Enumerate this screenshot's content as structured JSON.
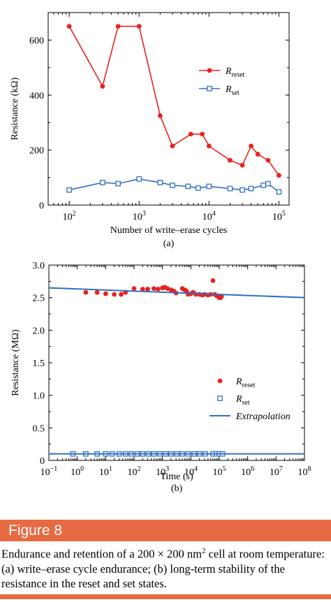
{
  "chart_data": [
    {
      "type": "line",
      "panel_label": "(a)",
      "xlabel": "Number of write–erase cycles",
      "ylabel": "Resistance  (kΩ)",
      "xscale": "log",
      "xlim": [
        50,
        140000
      ],
      "ylim": [
        0,
        700
      ],
      "yticks": [
        0,
        200,
        400,
        600
      ],
      "xticks": [
        {
          "value": 100,
          "base": "10",
          "exp": "2"
        },
        {
          "value": 1000,
          "base": "10",
          "exp": "3"
        },
        {
          "value": 10000,
          "base": "10",
          "exp": "4"
        },
        {
          "value": 100000,
          "base": "10",
          "exp": "5"
        }
      ],
      "legend_position": "top-right",
      "series": [
        {
          "name": "R",
          "name_sub": "reset",
          "color": "#E8231F",
          "marker": "filled-circle",
          "line": true,
          "x": [
            100,
            300,
            500,
            1000,
            2000,
            3000,
            5500,
            8000,
            10000,
            20000,
            30000,
            40000,
            50000,
            70000,
            100000
          ],
          "y": [
            650,
            432,
            650,
            650,
            325,
            215,
            258,
            258,
            215,
            163,
            145,
            215,
            185,
            163,
            108
          ]
        },
        {
          "name": "R",
          "name_sub": "set",
          "color": "#2F6FC4",
          "marker": "open-square",
          "line": true,
          "x": [
            100,
            300,
            500,
            1000,
            2000,
            3000,
            5000,
            7000,
            10000,
            20000,
            30000,
            40000,
            60000,
            70000,
            100000
          ],
          "y": [
            55,
            82,
            78,
            95,
            82,
            72,
            68,
            62,
            68,
            60,
            55,
            60,
            72,
            78,
            48
          ]
        }
      ]
    },
    {
      "type": "scatter",
      "panel_label": "(b)",
      "xlabel": "Time  (s)",
      "ylabel": "Resistance  (MΩ)",
      "xscale": "log",
      "xlim": [
        0.1,
        100000000
      ],
      "ylim": [
        0,
        3.0
      ],
      "yticks": [
        "0",
        "0.5",
        "1.0",
        "1.5",
        "2.0",
        "2.5",
        "3.0"
      ],
      "xticks": [
        {
          "value": 0.1,
          "base": "10",
          "exp": "−1"
        },
        {
          "value": 1,
          "base": "10",
          "exp": "0"
        },
        {
          "value": 10,
          "base": "10",
          "exp": "1"
        },
        {
          "value": 100,
          "base": "10",
          "exp": "2"
        },
        {
          "value": 1000,
          "base": "10",
          "exp": "3"
        },
        {
          "value": 10000,
          "base": "10",
          "exp": "4"
        },
        {
          "value": 100000,
          "base": "10",
          "exp": "5"
        },
        {
          "value": 1000000,
          "base": "10",
          "exp": "6"
        },
        {
          "value": 10000000,
          "base": "10",
          "exp": "7"
        },
        {
          "value": 100000000,
          "base": "10",
          "exp": "8"
        }
      ],
      "legend_position": "lower-right",
      "series": [
        {
          "name": "R",
          "name_sub": "reset",
          "color": "#E8231F",
          "marker": "filled-circle",
          "x": [
            2,
            5,
            10,
            20,
            35,
            50,
            100,
            200,
            300,
            500,
            700,
            1000,
            1200,
            1500,
            2000,
            2500,
            3000,
            5000,
            6000,
            7000,
            8000,
            10000,
            12000,
            15000,
            20000,
            25000,
            30000,
            40000,
            50000,
            60000,
            70000,
            80000,
            90000,
            100000,
            110000,
            120000
          ],
          "y": [
            2.58,
            2.58,
            2.56,
            2.55,
            2.55,
            2.58,
            2.64,
            2.63,
            2.63,
            2.64,
            2.63,
            2.65,
            2.66,
            2.64,
            2.62,
            2.6,
            2.57,
            2.64,
            2.62,
            2.6,
            2.55,
            2.56,
            2.58,
            2.55,
            2.55,
            2.54,
            2.55,
            2.54,
            2.55,
            2.76,
            2.55,
            2.53,
            2.52,
            2.5,
            2.5,
            2.52
          ]
        },
        {
          "name": "R",
          "name_sub": "set",
          "color": "#2F6FC4",
          "marker": "open-square",
          "x": [
            0.7,
            2,
            5,
            10,
            17,
            30,
            50,
            80,
            130,
            200,
            320,
            500,
            800,
            1300,
            2000,
            3200,
            5000,
            8000,
            13000,
            20000,
            32000,
            60000,
            80000,
            100000,
            130000
          ],
          "y": [
            0.1,
            0.1,
            0.1,
            0.1,
            0.1,
            0.1,
            0.1,
            0.1,
            0.1,
            0.1,
            0.1,
            0.1,
            0.1,
            0.1,
            0.1,
            0.1,
            0.1,
            0.1,
            0.1,
            0.1,
            0.1,
            0.1,
            0.1,
            0.1,
            0.1
          ]
        },
        {
          "name": "Extrapolation",
          "color": "#2F6FC4",
          "marker": "none",
          "line": true,
          "lines": [
            {
              "x": [
                0.1,
                100000000
              ],
              "y": [
                2.65,
                2.5
              ]
            },
            {
              "x": [
                0.1,
                100000000
              ],
              "y": [
                0.1,
                0.1
              ]
            }
          ]
        }
      ]
    }
  ],
  "figure": {
    "label": "Figure 8",
    "banner_color": "#E86A42",
    "caption_part1": "Endurance and retention of a 200 × 200 nm",
    "caption_sup": "2",
    "caption_part2": " cell at room temperature: (a) write–erase cycle endurance; (b) long-term stability of the resistance in the reset and set states."
  }
}
